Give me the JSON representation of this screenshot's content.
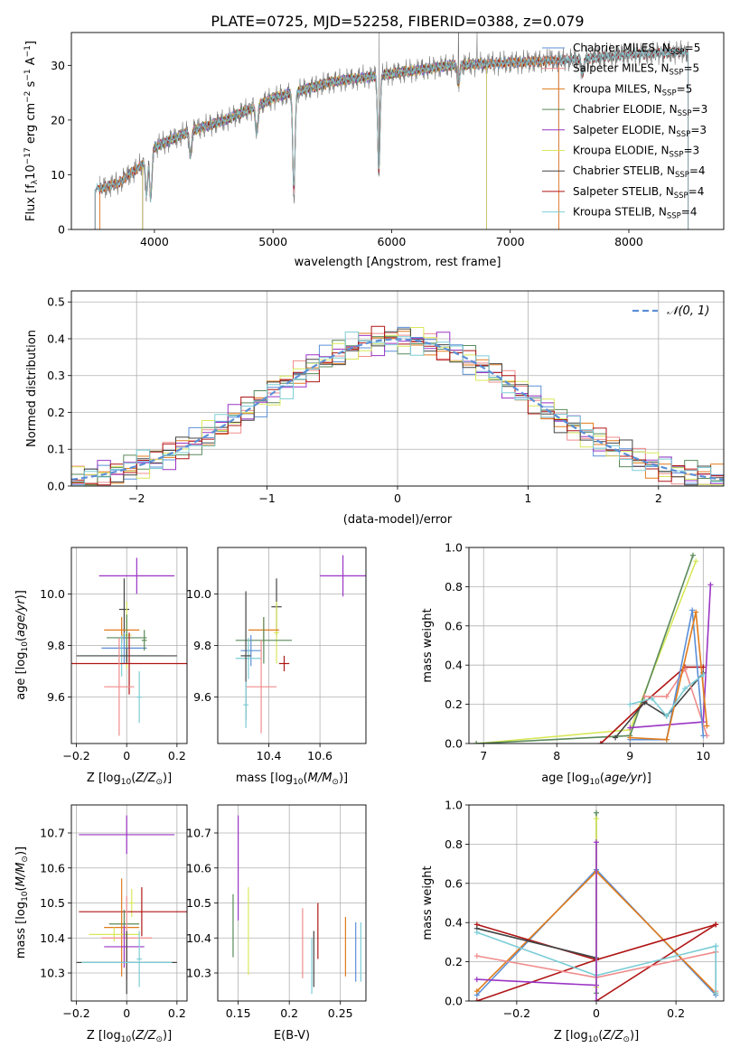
{
  "figure_title": "PLATE=0725, MJD=52258, FIBERID=0388, z=0.079",
  "colors": {
    "cM": "#5b8fd6",
    "sM": "#f08c8c",
    "kM": "#e07b1a",
    "cE": "#5a8a5a",
    "sE": "#9a35c4",
    "kE": "#d8e85a",
    "cS": "#444444",
    "sS": "#b01515",
    "kS": "#7ccdd6",
    "gaussian": "#5b8fd6",
    "spectrum": "#777777"
  },
  "chart_data": [
    {
      "type": "line",
      "title": "PLATE=0725, MJD=52258, FIBERID=0388, z=0.079",
      "xlabel": "wavelength [Angstrom, rest frame]",
      "ylabel": "Flux [f",
      "xlim": [
        3300,
        8800
      ],
      "ylim": [
        0,
        36
      ],
      "xticks": [
        4000,
        5000,
        6000,
        7000,
        8000
      ],
      "yticks": [
        0,
        10,
        20,
        30
      ],
      "grid": false,
      "legend_loc": "upper right",
      "legend": [
        {
          "key": "cM",
          "base": "Chabrier MILES, N",
          "val": "=5"
        },
        {
          "key": "sM",
          "base": "Salpeter MILES, N",
          "val": "=5"
        },
        {
          "key": "kM",
          "base": "Kroupa MILES, N",
          "val": "=5"
        },
        {
          "key": "cE",
          "base": "Chabrier ELODIE, N",
          "val": "=3"
        },
        {
          "key": "sE",
          "base": "Salpeter ELODIE, N",
          "val": "=3"
        },
        {
          "key": "kE",
          "base": "Kroupa ELODIE, N",
          "val": "=3"
        },
        {
          "key": "cS",
          "base": "Chabrier STELIB, N",
          "val": "=4"
        },
        {
          "key": "sS",
          "base": "Salpeter STELIB, N",
          "val": "=4"
        },
        {
          "key": "kS",
          "base": "Kroupa STELIB, N",
          "val": "=4"
        }
      ],
      "spectrum_continuum": [
        [
          3550,
          7.5
        ],
        [
          3700,
          8.5
        ],
        [
          3900,
          12
        ],
        [
          4000,
          15
        ],
        [
          4300,
          18
        ],
        [
          4600,
          20
        ],
        [
          5000,
          24
        ],
        [
          5500,
          27
        ],
        [
          6000,
          28.5
        ],
        [
          6500,
          30
        ],
        [
          7000,
          30.5
        ],
        [
          7500,
          31
        ],
        [
          8000,
          32
        ],
        [
          8500,
          32.5
        ]
      ],
      "model_ranges": {
        "MILES": [
          3540,
          7410
        ],
        "ELODIE": [
          3900,
          6800
        ],
        "STELIB": [
          3500,
          8500
        ]
      },
      "absorption_lines": [
        [
          3934,
          6
        ],
        [
          3969,
          5
        ],
        [
          4304,
          13
        ],
        [
          4862,
          17
        ],
        [
          5176,
          5.5
        ],
        [
          5892,
          9
        ],
        [
          6563,
          26
        ],
        [
          7610,
          28
        ]
      ],
      "emission_spikes": [
        [
          5895,
          36
        ],
        [
          6564,
          36
        ],
        [
          6720,
          36
        ],
        [
          7330,
          33
        ]
      ]
    },
    {
      "type": "step",
      "xlabel": "(data-model)/error",
      "ylabel": "Normed distribution",
      "xlim": [
        -2.5,
        2.5
      ],
      "ylim": [
        0,
        0.53
      ],
      "xticks": [
        -2,
        -1,
        0,
        1,
        2
      ],
      "yticks": [
        0.0,
        0.1,
        0.2,
        0.3,
        0.4,
        0.5
      ],
      "grid": true,
      "legend_loc": "upper right",
      "gaussian_label": "𝒩(0, 1)",
      "bin_width": 0.1,
      "series_keys": [
        "cM",
        "sM",
        "kM",
        "cE",
        "sE",
        "kE",
        "cS",
        "sS",
        "kS"
      ]
    },
    {
      "type": "errorbar",
      "xlabel": "Z [log",
      "ylabel": "age  [log",
      "xlim": [
        -0.22,
        0.24
      ],
      "ylim": [
        9.42,
        10.18
      ],
      "xticks": [
        -0.2,
        0.0,
        0.2
      ],
      "yticks": [
        9.6,
        9.8,
        10.0
      ],
      "grid": true,
      "points": [
        {
          "key": "sE",
          "x": 0.04,
          "xerr": 0.15,
          "y": 10.07,
          "yerr": 0.07
        },
        {
          "key": "cS",
          "x": -0.01,
          "xerr": 0.02,
          "y": 9.94,
          "yerr": 0.12
        },
        {
          "key": "kE",
          "x": 0.0,
          "xerr": 0.02,
          "y": 9.84,
          "yerr": 0.13
        },
        {
          "key": "kM",
          "x": -0.02,
          "xerr": 0.07,
          "y": 9.86,
          "yerr": 0.05
        },
        {
          "key": "cE",
          "x": 0.0,
          "xerr": 0.08,
          "y": 9.83,
          "yerr": 0.09
        },
        {
          "key": "cM",
          "x": -0.01,
          "xerr": 0.09,
          "y": 9.79,
          "yerr": 0.06
        },
        {
          "key": "kS",
          "x": -0.02,
          "xerr": 0.16,
          "y": 9.76,
          "yerr": 0.08
        },
        {
          "key": "cS",
          "x": 0.0,
          "xerr": 0.2,
          "y": 9.76,
          "yerr": 0.03
        },
        {
          "key": "sS",
          "x": 0.01,
          "xerr": 0.23,
          "y": 9.73,
          "yerr": 0.12
        },
        {
          "key": "sM",
          "x": -0.03,
          "xerr": 0.06,
          "y": 9.64,
          "yerr": 0.19
        },
        {
          "key": "kS",
          "x": 0.05,
          "xerr": 0.01,
          "y": 9.6,
          "yerr": 0.1
        },
        {
          "key": "cE",
          "x": 0.07,
          "xerr": 0.01,
          "y": 9.82,
          "yerr": 0.04
        }
      ]
    },
    {
      "type": "errorbar",
      "xlabel": "mass [log",
      "ylabel": "",
      "xlim": [
        10.2,
        10.78
      ],
      "ylim": [
        9.42,
        10.18
      ],
      "xticks": [
        10.4,
        10.6
      ],
      "yticks": [
        9.6,
        9.8,
        10.0
      ],
      "grid": true,
      "points": [
        {
          "key": "sE",
          "x": 10.69,
          "xerr": 0.09,
          "y": 10.07,
          "yerr": 0.08
        },
        {
          "key": "cS",
          "x": 10.43,
          "xerr": 0.02,
          "y": 9.95,
          "yerr": 0.11
        },
        {
          "key": "kE",
          "x": 10.43,
          "xerr": 0.01,
          "y": 9.85,
          "yerr": 0.12
        },
        {
          "key": "kM",
          "x": 10.38,
          "xerr": 0.06,
          "y": 9.86,
          "yerr": 0.05
        },
        {
          "key": "cE",
          "x": 10.38,
          "xerr": 0.11,
          "y": 9.82,
          "yerr": 0.09
        },
        {
          "key": "cM",
          "x": 10.33,
          "xerr": 0.04,
          "y": 9.78,
          "yerr": 0.06
        },
        {
          "key": "kS",
          "x": 10.32,
          "xerr": 0.05,
          "y": 9.75,
          "yerr": 0.08
        },
        {
          "key": "cS",
          "x": 10.31,
          "xerr": 0.02,
          "y": 9.76,
          "yerr": 0.25
        },
        {
          "key": "sS",
          "x": 10.46,
          "xerr": 0.02,
          "y": 9.73,
          "yerr": 0.03
        },
        {
          "key": "sM",
          "x": 10.37,
          "xerr": 0.06,
          "y": 9.64,
          "yerr": 0.18
        },
        {
          "key": "kS",
          "x": 10.31,
          "xerr": 0.01,
          "y": 9.57,
          "yerr": 0.09
        }
      ]
    },
    {
      "type": "line",
      "xlabel": "age  [log",
      "ylabel": "mass weight",
      "xlim": [
        6.8,
        10.28
      ],
      "ylim": [
        0,
        1
      ],
      "xticks": [
        7,
        8,
        9,
        10
      ],
      "yticks": [
        0.0,
        0.2,
        0.4,
        0.6,
        0.8,
        1.0
      ],
      "grid": true,
      "series": [
        {
          "key": "kE",
          "x": [
            6.9,
            9.0,
            9.9
          ],
          "y": [
            0.0,
            0.07,
            0.93
          ]
        },
        {
          "key": "cE",
          "x": [
            6.9,
            9.0,
            9.86
          ],
          "y": [
            0.0,
            0.04,
            0.96
          ]
        },
        {
          "key": "sS",
          "x": [
            8.6,
            9.2,
            9.75,
            10.0
          ],
          "y": [
            0.0,
            0.21,
            0.39,
            0.39
          ]
        },
        {
          "key": "cS",
          "x": [
            8.8,
            9.2,
            9.5,
            10.0
          ],
          "y": [
            0.03,
            0.21,
            0.14,
            0.36
          ]
        },
        {
          "key": "sE",
          "x": [
            9.0,
            10.0,
            10.1
          ],
          "y": [
            0.08,
            0.11,
            0.81
          ]
        },
        {
          "key": "sM",
          "x": [
            9.2,
            9.5,
            9.75,
            10.05
          ],
          "y": [
            0.24,
            0.24,
            0.38,
            0.04
          ]
        },
        {
          "key": "cM",
          "x": [
            9.0,
            9.5,
            9.85,
            10.0
          ],
          "y": [
            0.02,
            0.02,
            0.68,
            0.04
          ]
        },
        {
          "key": "kM",
          "x": [
            9.0,
            9.5,
            9.9,
            10.05
          ],
          "y": [
            0.03,
            0.02,
            0.67,
            0.09
          ]
        },
        {
          "key": "kS",
          "x": [
            9.0,
            9.3,
            9.5,
            9.75,
            10.0
          ],
          "y": [
            0.2,
            0.23,
            0.14,
            0.28,
            0.35
          ]
        }
      ]
    },
    {
      "type": "errorbar",
      "xlabel": "Z [log",
      "ylabel": "mass [log",
      "xlim": [
        -0.22,
        0.24
      ],
      "ylim": [
        10.22,
        10.78
      ],
      "xticks": [
        -0.2,
        0.0,
        0.2
      ],
      "yticks": [
        10.3,
        10.4,
        10.5,
        10.6,
        10.7
      ],
      "grid": true,
      "points": [
        {
          "key": "sE",
          "x": 0.0,
          "xerr": 0.19,
          "y": 10.695,
          "yerr": 0.055
        },
        {
          "key": "kE",
          "x": 0.02,
          "xerr": 0.01,
          "y": 10.5,
          "yerr": 0.04
        },
        {
          "key": "sS",
          "x": 0.06,
          "xerr": 0.25,
          "y": 10.475,
          "yerr": 0.07
        },
        {
          "key": "cE",
          "x": -0.01,
          "xerr": 0.06,
          "y": 10.44,
          "yerr": 0.04
        },
        {
          "key": "kM",
          "x": -0.02,
          "xerr": 0.07,
          "y": 10.43,
          "yerr": 0.14
        },
        {
          "key": "kE",
          "x": -0.05,
          "xerr": 0.1,
          "y": 10.41,
          "yerr": 0.02
        },
        {
          "key": "sM",
          "x": 0.0,
          "xerr": 0.1,
          "y": 10.4,
          "yerr": 0.12
        },
        {
          "key": "sE",
          "x": -0.01,
          "xerr": 0.08,
          "y": 10.375,
          "yerr": 0.06
        },
        {
          "key": "cS",
          "x": 0.0,
          "xerr": 0.2,
          "y": 10.33,
          "yerr": 0.09
        },
        {
          "key": "kS",
          "x": 0.0,
          "xerr": 0.18,
          "y": 10.33,
          "yerr": 0.0
        },
        {
          "key": "kS",
          "x": 0.05,
          "xerr": 0.01,
          "y": 10.34,
          "yerr": 0.08
        }
      ]
    },
    {
      "type": "errorbar",
      "xlabel": "E(B-V)",
      "ylabel": "",
      "xlim": [
        0.13,
        0.275
      ],
      "ylim": [
        10.22,
        10.78
      ],
      "xticks": [
        0.15,
        0.2,
        0.25
      ],
      "yticks": [
        10.3,
        10.4,
        10.5,
        10.6,
        10.7
      ],
      "grid": true,
      "points": [
        {
          "key": "cE",
          "x": 0.145,
          "y": 10.435,
          "yerr": 0.09
        },
        {
          "key": "sE",
          "x": 0.15,
          "y": 10.6,
          "yerr": 0.15
        },
        {
          "key": "kE",
          "x": 0.16,
          "y": 10.42,
          "yerr": 0.125
        },
        {
          "key": "sM",
          "x": 0.213,
          "y": 10.385,
          "yerr": 0.1
        },
        {
          "key": "kS",
          "x": 0.222,
          "y": 10.32,
          "yerr": 0.08
        },
        {
          "key": "cS",
          "x": 0.224,
          "y": 10.34,
          "yerr": 0.08
        },
        {
          "key": "sS",
          "x": 0.228,
          "y": 10.42,
          "yerr": 0.08
        },
        {
          "key": "kM",
          "x": 0.255,
          "y": 10.375,
          "yerr": 0.085
        },
        {
          "key": "cM",
          "x": 0.265,
          "y": 10.36,
          "yerr": 0.085
        },
        {
          "key": "kS",
          "x": 0.27,
          "y": 10.36,
          "yerr": 0.085
        }
      ]
    },
    {
      "type": "line",
      "xlabel": "Z [log",
      "ylabel": "mass weight",
      "xlim": [
        -0.32,
        0.32
      ],
      "ylim": [
        0,
        1
      ],
      "xticks": [
        -0.2,
        0.0,
        0.2
      ],
      "yticks": [
        0.0,
        0.2,
        0.4,
        0.6,
        0.8,
        1.0
      ],
      "grid": true,
      "series": [
        {
          "key": "cM",
          "x": [
            -0.3,
            0.0,
            0.3
          ],
          "y": [
            0.03,
            0.67,
            0.03
          ]
        },
        {
          "key": "kM",
          "x": [
            -0.3,
            0.0,
            0.3
          ],
          "y": [
            0.05,
            0.66,
            0.04
          ]
        },
        {
          "key": "sS",
          "x": [
            -0.3,
            0.0,
            0.3
          ],
          "y": [
            0.39,
            0.21,
            0.39
          ]
        },
        {
          "key": "sS",
          "x": [
            -0.3,
            0.0
          ],
          "y": [
            0.0,
            0.21
          ]
        },
        {
          "key": "sS",
          "x": [
            0.0,
            0.3
          ],
          "y": [
            0.0,
            0.39
          ]
        },
        {
          "key": "cS",
          "x": [
            -0.3,
            0.0
          ],
          "y": [
            0.37,
            0.22
          ]
        },
        {
          "key": "sE",
          "x": [
            -0.3,
            0.0
          ],
          "y": [
            0.11,
            0.08
          ]
        },
        {
          "key": "sM",
          "x": [
            -0.3,
            0.0,
            0.3
          ],
          "y": [
            0.23,
            0.12,
            0.25
          ]
        },
        {
          "key": "kS",
          "x": [
            -0.3,
            0.0,
            0.3
          ],
          "y": [
            0.35,
            0.13,
            0.28
          ]
        },
        {
          "key": "cE",
          "x": [
            0.0,
            0.0
          ],
          "y": [
            0.04,
            0.96
          ]
        },
        {
          "key": "kE",
          "x": [
            0.0,
            0.0
          ],
          "y": [
            0.07,
            0.93
          ]
        },
        {
          "key": "sE",
          "x": [
            0.0,
            0.0
          ],
          "y": [
            0.0,
            0.81
          ]
        },
        {
          "key": "sM",
          "x": [
            0.3,
            0.3
          ],
          "y": [
            0.05,
            0.25
          ]
        },
        {
          "key": "kS",
          "x": [
            0.3,
            0.3
          ],
          "y": [
            0.04,
            0.28
          ]
        }
      ]
    }
  ]
}
